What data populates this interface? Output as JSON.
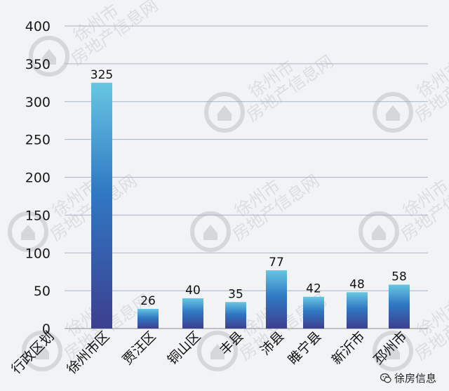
{
  "chart_data": {
    "type": "bar",
    "category_header": "行政区划",
    "categories": [
      "徐州市区",
      "贾汪区",
      "铜山区",
      "丰县",
      "沛县",
      "睢宁县",
      "新沂市",
      "邳州市"
    ],
    "values": [
      325,
      26,
      40,
      35,
      77,
      42,
      48,
      58
    ],
    "value_labels": [
      "325",
      "26",
      "40",
      "35",
      "77",
      "42",
      "48",
      "58"
    ],
    "yticks": [
      "0",
      "50",
      "100",
      "150",
      "200",
      "250",
      "300",
      "350",
      "400"
    ],
    "ylim": [
      0,
      400
    ],
    "grid": true,
    "bar_gradient": [
      "#68c6e2",
      "#2f78c3",
      "#3d3f8f"
    ]
  },
  "watermark": {
    "text_line1": "徐州市",
    "text_line2": "房地产信息网"
  },
  "brand": {
    "label": "徐房信息",
    "icon": "wechat-icon"
  }
}
